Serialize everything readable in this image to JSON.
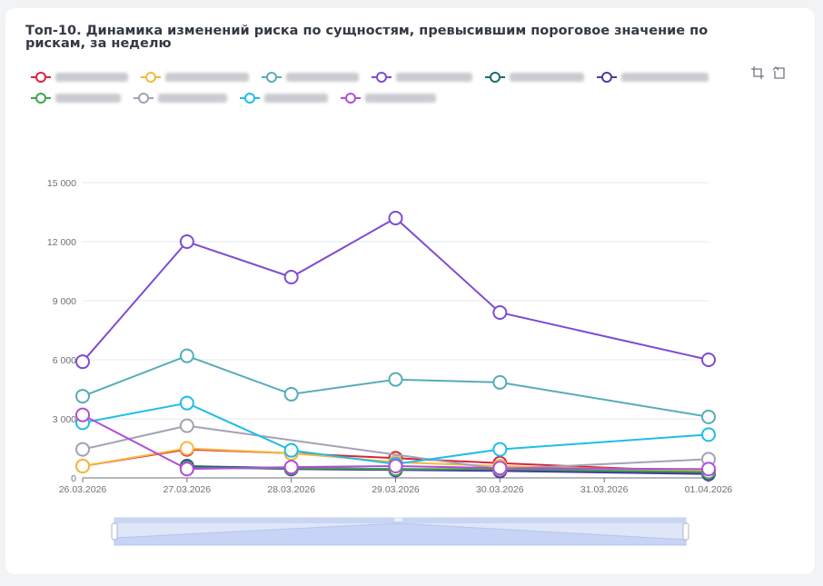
{
  "title": "Топ-10. Динамика изменений риска по сущностям, превысившим пороговое значение по рискам, за неделю",
  "toolbox": [
    {
      "icon": "crop-zoom-icon"
    },
    {
      "icon": "zoom-reset-icon"
    }
  ],
  "chart_data": {
    "type": "line",
    "categories": [
      "26.03.2026",
      "27.03.2026",
      "28.03.2026",
      "29.03.2026",
      "30.03.2026",
      "31.03.2026",
      "01.04.2026"
    ],
    "ylim": [
      0,
      15000
    ],
    "yticks": [
      {
        "value": 0,
        "label": "0"
      },
      {
        "value": 3000,
        "label": "3 000"
      },
      {
        "value": 6000,
        "label": "6 000"
      },
      {
        "value": 9000,
        "label": "9 000"
      },
      {
        "value": 12000,
        "label": "12 000"
      },
      {
        "value": 15000,
        "label": "15 000"
      }
    ],
    "grid": true,
    "legend_position": "top-left",
    "series": [
      {
        "color": "#d7263d",
        "values": [
          600,
          1450,
          1250,
          1000,
          750,
          null,
          300
        ]
      },
      {
        "color": "#f5b83d",
        "values": [
          600,
          1500,
          1250,
          800,
          600,
          null,
          350
        ]
      },
      {
        "color": "#56adb8",
        "values": [
          4150,
          6200,
          4250,
          5000,
          4850,
          null,
          3100
        ]
      },
      {
        "color": "#7e4bd2",
        "values": [
          5900,
          12000,
          10200,
          13200,
          8400,
          null,
          6000
        ]
      },
      {
        "color": "#1e6b6b",
        "values": [
          null,
          600,
          500,
          450,
          400,
          null,
          250
        ]
      },
      {
        "color": "#4c3a9e",
        "values": [
          null,
          550,
          450,
          400,
          350,
          null,
          200
        ]
      },
      {
        "color": "#3da84a",
        "values": [
          null,
          500,
          500,
          450,
          450,
          null,
          300
        ]
      },
      {
        "color": "#a2a2b4",
        "values": [
          1450,
          2650,
          null,
          null,
          450,
          null,
          950
        ]
      },
      {
        "color": "#1ebee8",
        "values": [
          2800,
          3800,
          1400,
          700,
          1450,
          null,
          2200
        ]
      },
      {
        "color": "#b04ed8",
        "values": [
          3200,
          450,
          550,
          600,
          500,
          null,
          450
        ]
      }
    ]
  }
}
